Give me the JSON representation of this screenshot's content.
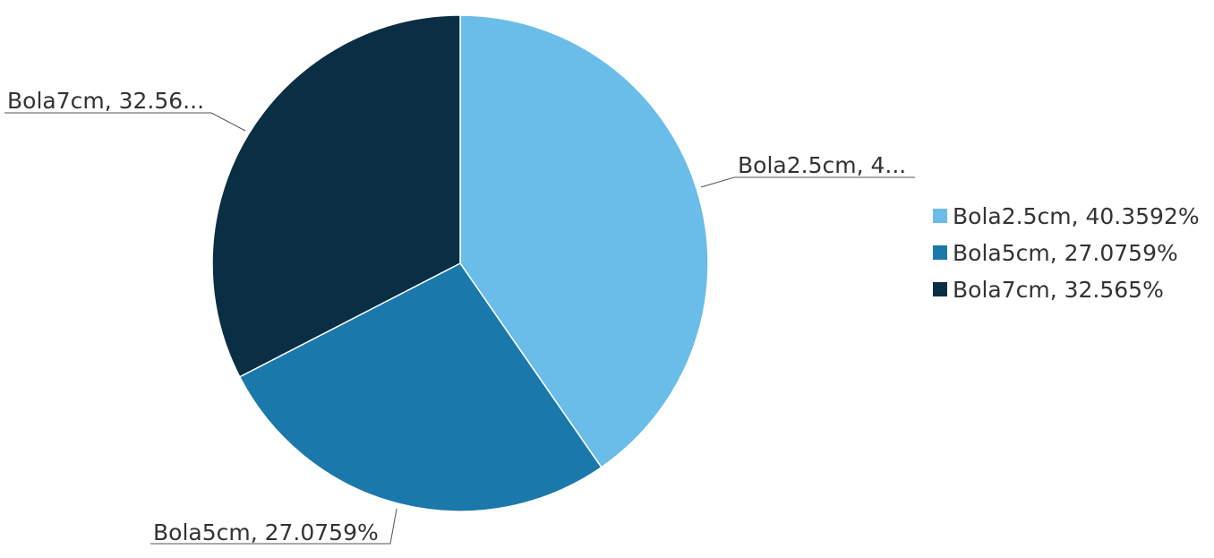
{
  "chart_data": {
    "type": "pie",
    "slices": [
      {
        "name": "Bola2.5cm",
        "value": 40.3592,
        "color": "#6abde9",
        "data_label": "Bola2.5cm, 4...",
        "legend_label": "Bola2.5cm, 40.3592%"
      },
      {
        "name": "Bola5cm",
        "value": 27.0759,
        "color": "#1b78aa",
        "data_label": "Bola5cm, 27.0759%",
        "legend_label": "Bola5cm, 27.0759%"
      },
      {
        "name": "Bola7cm",
        "value": 32.565,
        "color": "#0a2e44",
        "data_label": "Bola7cm, 32.56...",
        "legend_label": "Bola7cm, 32.565%"
      }
    ],
    "legend_position": "right",
    "start_angle": "top",
    "direction": "clockwise"
  }
}
